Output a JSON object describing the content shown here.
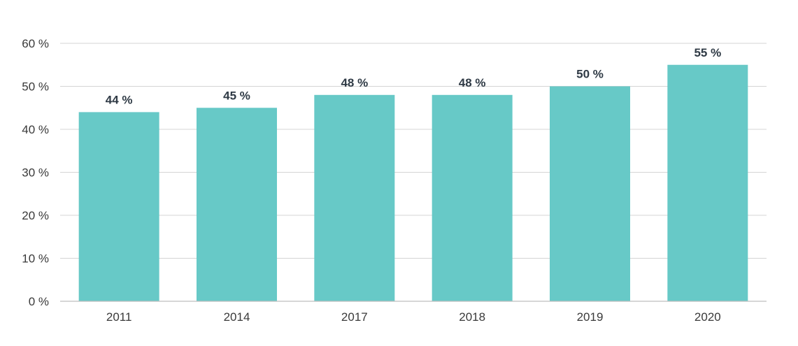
{
  "chart_data": {
    "type": "bar",
    "title": "",
    "xlabel": "",
    "ylabel": "",
    "categories": [
      "2011",
      "2014",
      "2017",
      "2018",
      "2019",
      "2020"
    ],
    "values": [
      44,
      45,
      48,
      48,
      50,
      55
    ],
    "data_labels": [
      "44 %",
      "45 %",
      "48 %",
      "48 %",
      "50 %",
      "55 %"
    ],
    "ylim": [
      0,
      60
    ],
    "y_ticks": [
      0,
      10,
      20,
      30,
      40,
      50,
      60
    ],
    "y_tick_labels": [
      "0 %",
      "10 %",
      "20 %",
      "30 %",
      "40 %",
      "50 %",
      "60 %"
    ],
    "grid": true,
    "legend": "none",
    "bar_color": "#67c9c7",
    "label_color": "#2f3a45"
  }
}
